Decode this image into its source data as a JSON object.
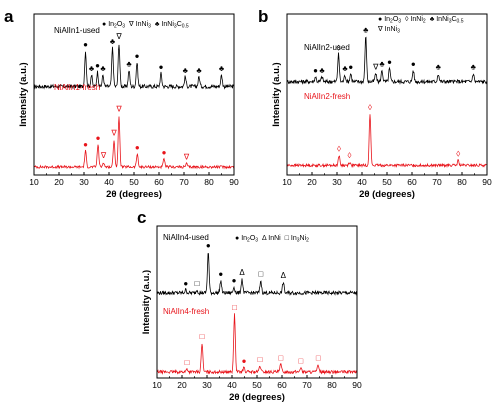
{
  "figure": {
    "colors": {
      "axis": "#000000",
      "used": "#000000",
      "fresh": "#e8141b"
    }
  },
  "chart_data": [
    {
      "type": "line",
      "panel": "a",
      "xlabel": "2θ (degrees)",
      "ylabel": "Intensity (a.u.)",
      "xlim": [
        10,
        90
      ],
      "xticks": [
        10,
        20,
        30,
        40,
        50,
        60,
        70,
        80,
        90
      ],
      "legend": [
        {
          "symbol": "●",
          "text": "In",
          "sub1": "2",
          "text2": "O",
          "sub2": "3"
        },
        {
          "symbol": "∇",
          "text": "InNi",
          "sub1": "3",
          "text2": "",
          "sub2": ""
        },
        {
          "symbol": "♣",
          "text": "InNi",
          "sub1": "3",
          "text2": "C",
          "sub2": "0.5"
        }
      ],
      "series": [
        {
          "name": "NiAlIn1-used",
          "color": "#000000",
          "baseline": 0.55,
          "noise": 0.012,
          "peaks": [
            {
              "x": 30.6,
              "h": 0.22
            },
            {
              "x": 33.0,
              "h": 0.07
            },
            {
              "x": 35.4,
              "h": 0.09
            },
            {
              "x": 37.6,
              "h": 0.07
            },
            {
              "x": 41.4,
              "h": 0.24
            },
            {
              "x": 44.0,
              "h": 0.27
            },
            {
              "x": 48.0,
              "h": 0.1
            },
            {
              "x": 51.2,
              "h": 0.15
            },
            {
              "x": 60.8,
              "h": 0.08
            },
            {
              "x": 70.5,
              "h": 0.06
            },
            {
              "x": 76.0,
              "h": 0.06
            },
            {
              "x": 85.0,
              "h": 0.07
            }
          ],
          "markers": [
            {
              "x": 30.6,
              "symbol": "●"
            },
            {
              "x": 33.0,
              "symbol": "♣"
            },
            {
              "x": 35.4,
              "symbol": "●"
            },
            {
              "x": 37.6,
              "symbol": "♣"
            },
            {
              "x": 41.4,
              "symbol": "♣"
            },
            {
              "x": 44.0,
              "symbol": "∇"
            },
            {
              "x": 48.0,
              "symbol": "♣"
            },
            {
              "x": 51.2,
              "symbol": "●"
            },
            {
              "x": 60.8,
              "symbol": "●"
            },
            {
              "x": 70.5,
              "symbol": "♣"
            },
            {
              "x": 76.0,
              "symbol": "♣"
            },
            {
              "x": 85.0,
              "symbol": "♣"
            }
          ]
        },
        {
          "name": "NiAlIn1-fresh",
          "color": "#e8141b",
          "baseline": 0.05,
          "noise": 0.008,
          "peaks": [
            {
              "x": 30.6,
              "h": 0.1
            },
            {
              "x": 35.6,
              "h": 0.14
            },
            {
              "x": 37.8,
              "h": 0.03
            },
            {
              "x": 42.0,
              "h": 0.17
            },
            {
              "x": 44.0,
              "h": 0.32
            },
            {
              "x": 51.3,
              "h": 0.08
            },
            {
              "x": 62.0,
              "h": 0.05
            },
            {
              "x": 71.0,
              "h": 0.02
            }
          ],
          "markers": [
            {
              "x": 30.6,
              "symbol": "●"
            },
            {
              "x": 35.6,
              "symbol": "●"
            },
            {
              "x": 37.8,
              "symbol": "∇"
            },
            {
              "x": 42.0,
              "symbol": "∇"
            },
            {
              "x": 44.0,
              "symbol": "∇"
            },
            {
              "x": 51.3,
              "symbol": "●"
            },
            {
              "x": 62.0,
              "symbol": "●"
            },
            {
              "x": 71.0,
              "symbol": "∇"
            }
          ]
        }
      ]
    },
    {
      "type": "line",
      "panel": "b",
      "xlabel": "2θ (degrees)",
      "ylabel": "Intensity (a.u.)",
      "xlim": [
        10,
        90
      ],
      "xticks": [
        10,
        20,
        30,
        40,
        50,
        60,
        70,
        80,
        90
      ],
      "legend": [
        {
          "symbol": "●",
          "text": "In",
          "sub1": "2",
          "text2": "O",
          "sub2": "3"
        },
        {
          "symbol": "◊",
          "text": "InNi",
          "sub1": "2",
          "text2": "",
          "sub2": ""
        },
        {
          "symbol": "♣",
          "text": "InNi",
          "sub1": "3",
          "text2": "C",
          "sub2": "0.5"
        },
        {
          "symbol": "∇",
          "text": "InNi",
          "sub1": "3",
          "text2": "",
          "sub2": ""
        }
      ],
      "series": [
        {
          "name": "NiAlIn2-used",
          "color": "#000000",
          "baseline": 0.58,
          "noise": 0.012,
          "peaks": [
            {
              "x": 21.4,
              "h": 0.03
            },
            {
              "x": 24.0,
              "h": 0.03
            },
            {
              "x": 30.6,
              "h": 0.17
            },
            {
              "x": 33.2,
              "h": 0.04
            },
            {
              "x": 35.5,
              "h": 0.05
            },
            {
              "x": 41.5,
              "h": 0.28
            },
            {
              "x": 45.5,
              "h": 0.05
            },
            {
              "x": 48.0,
              "h": 0.07
            },
            {
              "x": 51.0,
              "h": 0.08
            },
            {
              "x": 60.5,
              "h": 0.07
            },
            {
              "x": 70.5,
              "h": 0.05
            },
            {
              "x": 84.5,
              "h": 0.05
            }
          ],
          "markers": [
            {
              "x": 21.4,
              "symbol": "●"
            },
            {
              "x": 24.0,
              "symbol": "♣"
            },
            {
              "x": 30.6,
              "symbol": "◊"
            },
            {
              "x": 33.2,
              "symbol": "♣"
            },
            {
              "x": 35.5,
              "symbol": "●"
            },
            {
              "x": 41.5,
              "symbol": "♣"
            },
            {
              "x": 45.5,
              "symbol": "∇"
            },
            {
              "x": 48.0,
              "symbol": "♣"
            },
            {
              "x": 51.0,
              "symbol": "●"
            },
            {
              "x": 60.5,
              "symbol": "●"
            },
            {
              "x": 70.5,
              "symbol": "♣"
            },
            {
              "x": 84.5,
              "symbol": "♣"
            }
          ]
        },
        {
          "name": "NiAlIn2-fresh",
          "color": "#e8141b",
          "baseline": 0.06,
          "noise": 0.008,
          "peaks": [
            {
              "x": 30.8,
              "h": 0.06
            },
            {
              "x": 35.0,
              "h": 0.02
            },
            {
              "x": 43.2,
              "h": 0.32
            },
            {
              "x": 78.5,
              "h": 0.03
            }
          ],
          "markers": [
            {
              "x": 30.8,
              "symbol": "◊"
            },
            {
              "x": 35.0,
              "symbol": "◊"
            },
            {
              "x": 43.2,
              "symbol": "◊"
            },
            {
              "x": 78.5,
              "symbol": "◊"
            }
          ]
        }
      ]
    },
    {
      "type": "line",
      "panel": "c",
      "xlabel": "2θ (degrees)",
      "ylabel": "Intensity (a.u.)",
      "xlim": [
        10,
        90
      ],
      "xticks": [
        10,
        20,
        30,
        40,
        50,
        60,
        70,
        80,
        90
      ],
      "legend": [
        {
          "symbol": "●",
          "text": "In",
          "sub1": "2",
          "text2": "O",
          "sub2": "3"
        },
        {
          "symbol": "Δ",
          "text": "InNi",
          "sub1": "",
          "text2": "",
          "sub2": ""
        },
        {
          "symbol": "□",
          "text": "In",
          "sub1": "3",
          "text2": "Ni",
          "sub2": "2"
        }
      ],
      "series": [
        {
          "name": "NiAlIn4-used",
          "color": "#000000",
          "baseline": 0.56,
          "noise": 0.012,
          "peaks": [
            {
              "x": 21.5,
              "h": 0.02
            },
            {
              "x": 26.0,
              "h": 0.02
            },
            {
              "x": 30.5,
              "h": 0.27
            },
            {
              "x": 35.5,
              "h": 0.08
            },
            {
              "x": 40.8,
              "h": 0.04
            },
            {
              "x": 44.0,
              "h": 0.09
            },
            {
              "x": 51.5,
              "h": 0.08
            },
            {
              "x": 60.5,
              "h": 0.07
            }
          ],
          "markers": [
            {
              "x": 21.5,
              "symbol": "●"
            },
            {
              "x": 26.0,
              "symbol": "□"
            },
            {
              "x": 30.5,
              "symbol": "●"
            },
            {
              "x": 35.5,
              "symbol": "●"
            },
            {
              "x": 40.8,
              "symbol": "●"
            },
            {
              "x": 44.0,
              "symbol": "Δ"
            },
            {
              "x": 51.5,
              "symbol": "□"
            },
            {
              "x": 60.5,
              "symbol": "Δ"
            }
          ]
        },
        {
          "name": "NiAlIn4-fresh",
          "color": "#e8141b",
          "baseline": 0.04,
          "noise": 0.01,
          "peaks": [
            {
              "x": 22.0,
              "h": 0.02
            },
            {
              "x": 28.0,
              "h": 0.19
            },
            {
              "x": 41.0,
              "h": 0.38
            },
            {
              "x": 44.8,
              "h": 0.03
            },
            {
              "x": 51.2,
              "h": 0.04
            },
            {
              "x": 59.5,
              "h": 0.05
            },
            {
              "x": 67.5,
              "h": 0.03
            },
            {
              "x": 74.5,
              "h": 0.05
            }
          ],
          "markers": [
            {
              "x": 22.0,
              "symbol": "□"
            },
            {
              "x": 28.0,
              "symbol": "□"
            },
            {
              "x": 41.0,
              "symbol": "□"
            },
            {
              "x": 44.8,
              "symbol": "●"
            },
            {
              "x": 51.2,
              "symbol": "□"
            },
            {
              "x": 59.5,
              "symbol": "□"
            },
            {
              "x": 67.5,
              "symbol": "□"
            },
            {
              "x": 74.5,
              "symbol": "□"
            }
          ]
        }
      ]
    }
  ]
}
